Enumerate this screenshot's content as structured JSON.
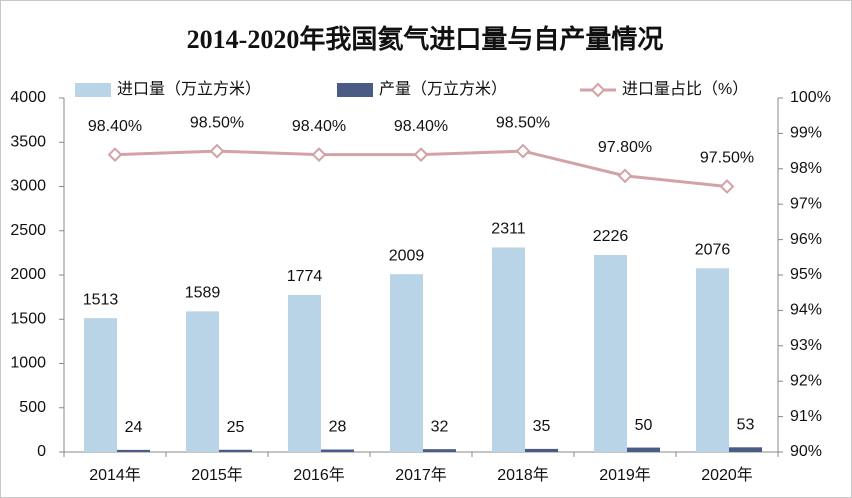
{
  "chart_data": {
    "type": "bar",
    "title": "2014-2020年我国氦气进口量与自产量情况",
    "categories": [
      "2014年",
      "2015年",
      "2016年",
      "2017年",
      "2018年",
      "2019年",
      "2020年"
    ],
    "series": [
      {
        "name": "进口量（万立方米）",
        "type": "bar",
        "color": "#b9d4e7",
        "values": [
          1513,
          1589,
          1774,
          2009,
          2311,
          2226,
          2076
        ]
      },
      {
        "name": "产量（万立方米）",
        "type": "bar",
        "color": "#4a5b86",
        "values": [
          24,
          25,
          28,
          32,
          35,
          50,
          53
        ]
      },
      {
        "name": "进口量占比（%）",
        "type": "line",
        "axis": "y2",
        "color": "#d3a2a6",
        "values": [
          98.4,
          98.5,
          98.4,
          98.4,
          98.5,
          97.8,
          97.5
        ],
        "value_labels": [
          "98.40%",
          "98.50%",
          "98.40%",
          "98.40%",
          "98.50%",
          "97.80%",
          "97.50%"
        ]
      }
    ],
    "ylim": [
      0,
      4000
    ],
    "yticks": [
      0,
      500,
      1000,
      1500,
      2000,
      2500,
      3000,
      3500,
      4000
    ],
    "y2lim": [
      90,
      100
    ],
    "y2ticks": [
      {
        "value": 90,
        "label": "90%"
      },
      {
        "value": 91,
        "label": "91%"
      },
      {
        "value": 92,
        "label": "92%"
      },
      {
        "value": 93,
        "label": "93%"
      },
      {
        "value": 94,
        "label": "94%"
      },
      {
        "value": 95,
        "label": "95%"
      },
      {
        "value": 96,
        "label": "96%"
      },
      {
        "value": 97,
        "label": "97%"
      },
      {
        "value": 98,
        "label": "98%"
      },
      {
        "value": 99,
        "label": "99%"
      },
      {
        "value": 100,
        "label": "100%"
      }
    ],
    "grid": false
  }
}
